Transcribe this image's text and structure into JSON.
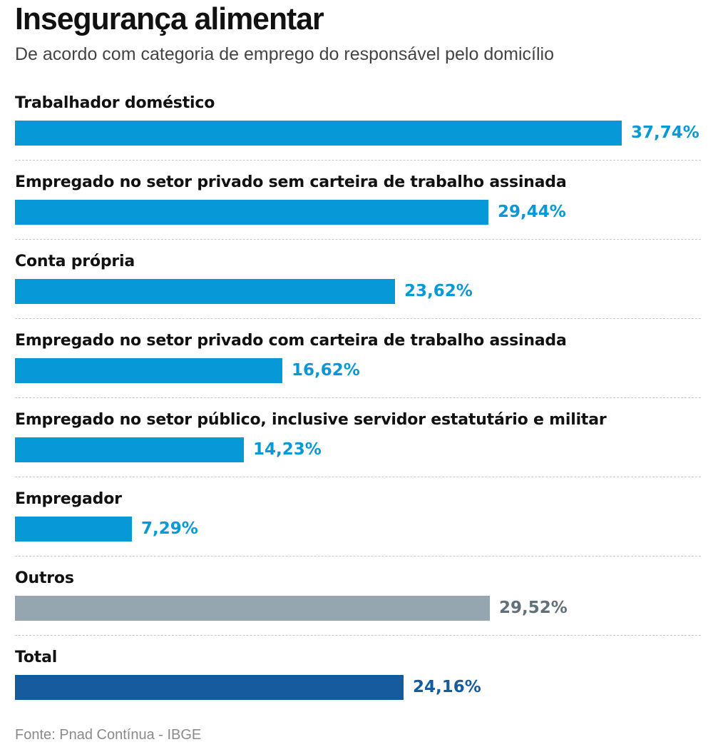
{
  "title": "Insegurança alimentar",
  "subtitle": "De acordo com categoria de emprego do responsável pelo domicílio",
  "source": "Fonte: Pnad Contínua - IBGE",
  "colors": {
    "primary": "#0798d8",
    "other": "#95a6b0",
    "total": "#145c9e",
    "primary_text": "#0798d8",
    "other_text": "#627079",
    "total_text": "#145c9e"
  },
  "chart_data": {
    "type": "bar",
    "orientation": "horizontal",
    "title": "Insegurança alimentar",
    "subtitle": "De acordo com categoria de emprego do responsável pelo domicílio",
    "xlabel": "",
    "ylabel": "",
    "unit": "%",
    "xlim": [
      0,
      37.74
    ],
    "grid": false,
    "legend": "none",
    "categories": [
      "Trabalhador doméstico",
      "Empregado no setor privado sem carteira de trabalho assinada",
      "Conta própria",
      "Empregado no setor privado com carteira de trabalho assinada",
      "Empregado no setor público, inclusive servidor estatutário e militar",
      "Empregador",
      "Outros",
      "Total"
    ],
    "values": [
      37.74,
      29.44,
      23.62,
      16.62,
      14.23,
      7.29,
      29.52,
      24.16
    ],
    "value_labels": [
      "37,74%",
      "29,44%",
      "23,62%",
      "16,62%",
      "14,23%",
      "7,29%",
      "29,52%",
      "24,16%"
    ],
    "styles": [
      "primary",
      "primary",
      "primary",
      "primary",
      "primary",
      "primary",
      "other",
      "total"
    ],
    "source": "Fonte: Pnad Contínua - IBGE"
  }
}
